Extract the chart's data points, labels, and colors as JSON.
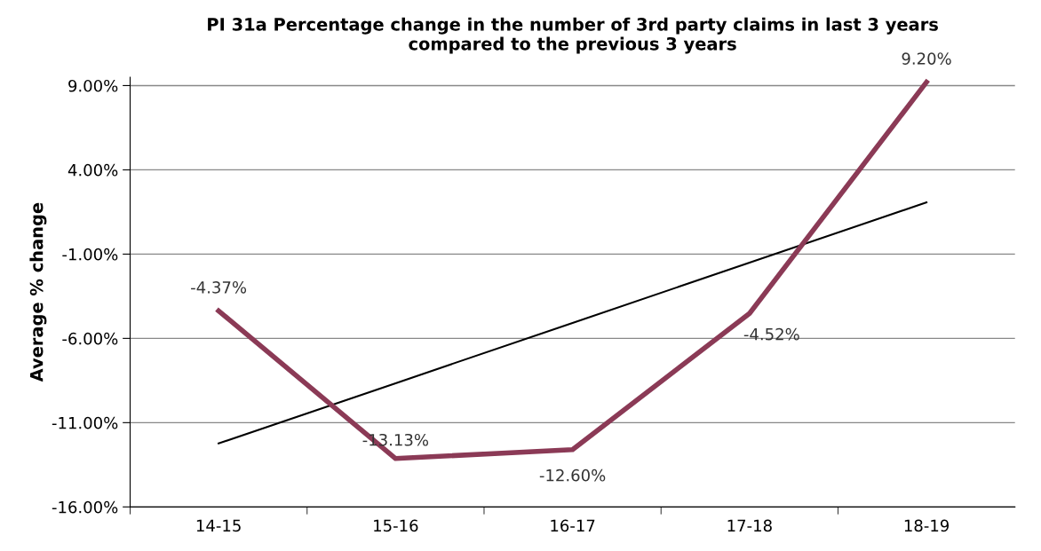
{
  "chart_data": {
    "type": "line",
    "title": "PI 31a Percentage change in the number of 3rd party claims in last 3 years\ncompared to the previous 3 years",
    "ylabel": "Average % change",
    "categories": [
      "14-15",
      "15-16",
      "16-17",
      "17-18",
      "18-19"
    ],
    "series": [
      {
        "color": "#8b3a56",
        "values": [
          -4.37,
          -13.13,
          -12.6,
          -4.52,
          9.2
        ],
        "value_labels": [
          "-4.37%",
          "-13.13%",
          "-12.60%",
          "-4.52%",
          "9.20%"
        ]
      },
      {
        "color": "#000000",
        "values": [
          -12.23,
          -8.66,
          -5.08,
          -1.51,
          2.07
        ]
      }
    ],
    "ylim": [
      -16,
      9.5
    ],
    "yticks": [
      {
        "value": -16,
        "label": "-16.00%"
      },
      {
        "value": -11,
        "label": "-11.00%"
      },
      {
        "value": -6,
        "label": "-6.00%"
      },
      {
        "value": -1,
        "label": "-1.00%"
      },
      {
        "value": 4,
        "label": "4.00%"
      },
      {
        "value": 9,
        "label": "9.00%"
      }
    ],
    "grid": "y",
    "legend": false,
    "marker": "none",
    "line_style": "solid"
  }
}
